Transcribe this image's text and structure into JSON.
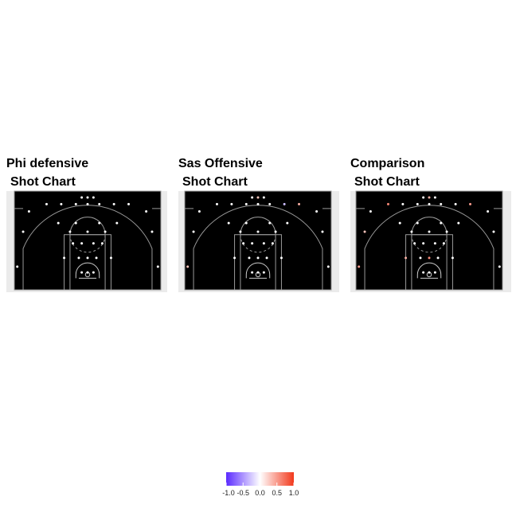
{
  "chart_data": [
    {
      "type": "shot_chart",
      "title": [
        "Phi defensive",
        "Shot Chart"
      ],
      "xlim": [
        -25,
        25
      ],
      "ylim": [
        0,
        34
      ],
      "x": [
        -2,
        0,
        2,
        -14,
        -9,
        -4,
        0,
        4,
        9,
        14,
        -20,
        20,
        -10,
        -4,
        4,
        10,
        -22,
        -6,
        0,
        6,
        22,
        -5,
        -2,
        2,
        5,
        -8,
        -3,
        0,
        3,
        8,
        -2,
        0,
        2,
        -24,
        24
      ],
      "y": [
        31.8,
        31.8,
        31.8,
        29.5,
        29.5,
        29.5,
        29.5,
        29.5,
        29.5,
        29.5,
        27,
        27,
        23,
        23,
        23,
        23,
        20,
        20,
        20,
        20,
        20,
        16,
        16,
        16,
        16,
        11,
        11,
        11,
        11,
        11,
        6,
        6,
        6,
        8,
        8
      ],
      "values": [
        0,
        0,
        0,
        0,
        0,
        0,
        0,
        0,
        0,
        0,
        0,
        0,
        0,
        0,
        0,
        0,
        0,
        0,
        0,
        0,
        0,
        0,
        0,
        0,
        0,
        0,
        0,
        0,
        0,
        0,
        0,
        0,
        0,
        0,
        0
      ]
    },
    {
      "type": "shot_chart",
      "title": [
        "Sas Offensive",
        "Shot Chart"
      ],
      "xlim": [
        -25,
        25
      ],
      "ylim": [
        0,
        34
      ],
      "x": [
        -2,
        0,
        2,
        -14,
        -9,
        -4,
        0,
        4,
        9,
        14,
        -20,
        20,
        -10,
        -4,
        4,
        10,
        -22,
        -6,
        0,
        6,
        22,
        -5,
        -2,
        2,
        5,
        -8,
        -3,
        0,
        3,
        8,
        -2,
        0,
        2,
        -24,
        24
      ],
      "y": [
        31.8,
        31.8,
        31.8,
        29.5,
        29.5,
        29.5,
        29.5,
        29.5,
        29.5,
        29.5,
        27,
        27,
        23,
        23,
        23,
        23,
        20,
        20,
        20,
        20,
        20,
        16,
        16,
        16,
        16,
        11,
        11,
        11,
        11,
        11,
        6,
        6,
        6,
        8,
        8
      ],
      "values": [
        0,
        0.3,
        0,
        0,
        0,
        0,
        0,
        0,
        -0.3,
        0.4,
        0,
        0,
        0,
        0,
        0,
        0,
        0,
        0,
        0,
        0,
        0,
        0,
        0,
        0,
        0,
        0,
        0,
        0,
        0,
        0,
        0,
        0,
        0,
        0.3,
        0
      ]
    },
    {
      "type": "shot_chart",
      "title": [
        "Comparison",
        "Shot Chart"
      ],
      "xlim": [
        -25,
        25
      ],
      "ylim": [
        0,
        34
      ],
      "x": [
        -2,
        0,
        2,
        -14,
        -9,
        -4,
        0,
        4,
        9,
        14,
        -20,
        20,
        -10,
        -4,
        4,
        10,
        -22,
        -6,
        0,
        6,
        22,
        -5,
        -2,
        2,
        5,
        -8,
        -3,
        0,
        3,
        8,
        -2,
        0,
        2,
        -24,
        24
      ],
      "y": [
        31.8,
        31.8,
        31.8,
        29.5,
        29.5,
        29.5,
        29.5,
        29.5,
        29.5,
        29.5,
        27,
        27,
        23,
        23,
        23,
        23,
        20,
        20,
        20,
        20,
        20,
        16,
        16,
        16,
        16,
        11,
        11,
        11,
        11,
        11,
        6,
        6,
        6,
        8,
        8
      ],
      "values": [
        0,
        0.4,
        0,
        0.6,
        0,
        0,
        0,
        0,
        0,
        0.5,
        0,
        0,
        0,
        0,
        0,
        0,
        0.3,
        0,
        0,
        0,
        0,
        0,
        0,
        0,
        0,
        0.4,
        0,
        0.6,
        0,
        0,
        0,
        0,
        0,
        0.5,
        0
      ]
    }
  ],
  "colorbar": {
    "lim": [
      -1,
      1
    ],
    "colors": [
      "#5b2bff",
      "#ffffff",
      "#f2391c"
    ],
    "ticks": [
      {
        "value": -1,
        "label": "-1.0"
      },
      {
        "value": -0.5,
        "label": "-0.5"
      },
      {
        "value": 0,
        "label": "0.0"
      },
      {
        "value": 0.5,
        "label": "0.5"
      },
      {
        "value": 1,
        "label": "1.0"
      }
    ]
  }
}
